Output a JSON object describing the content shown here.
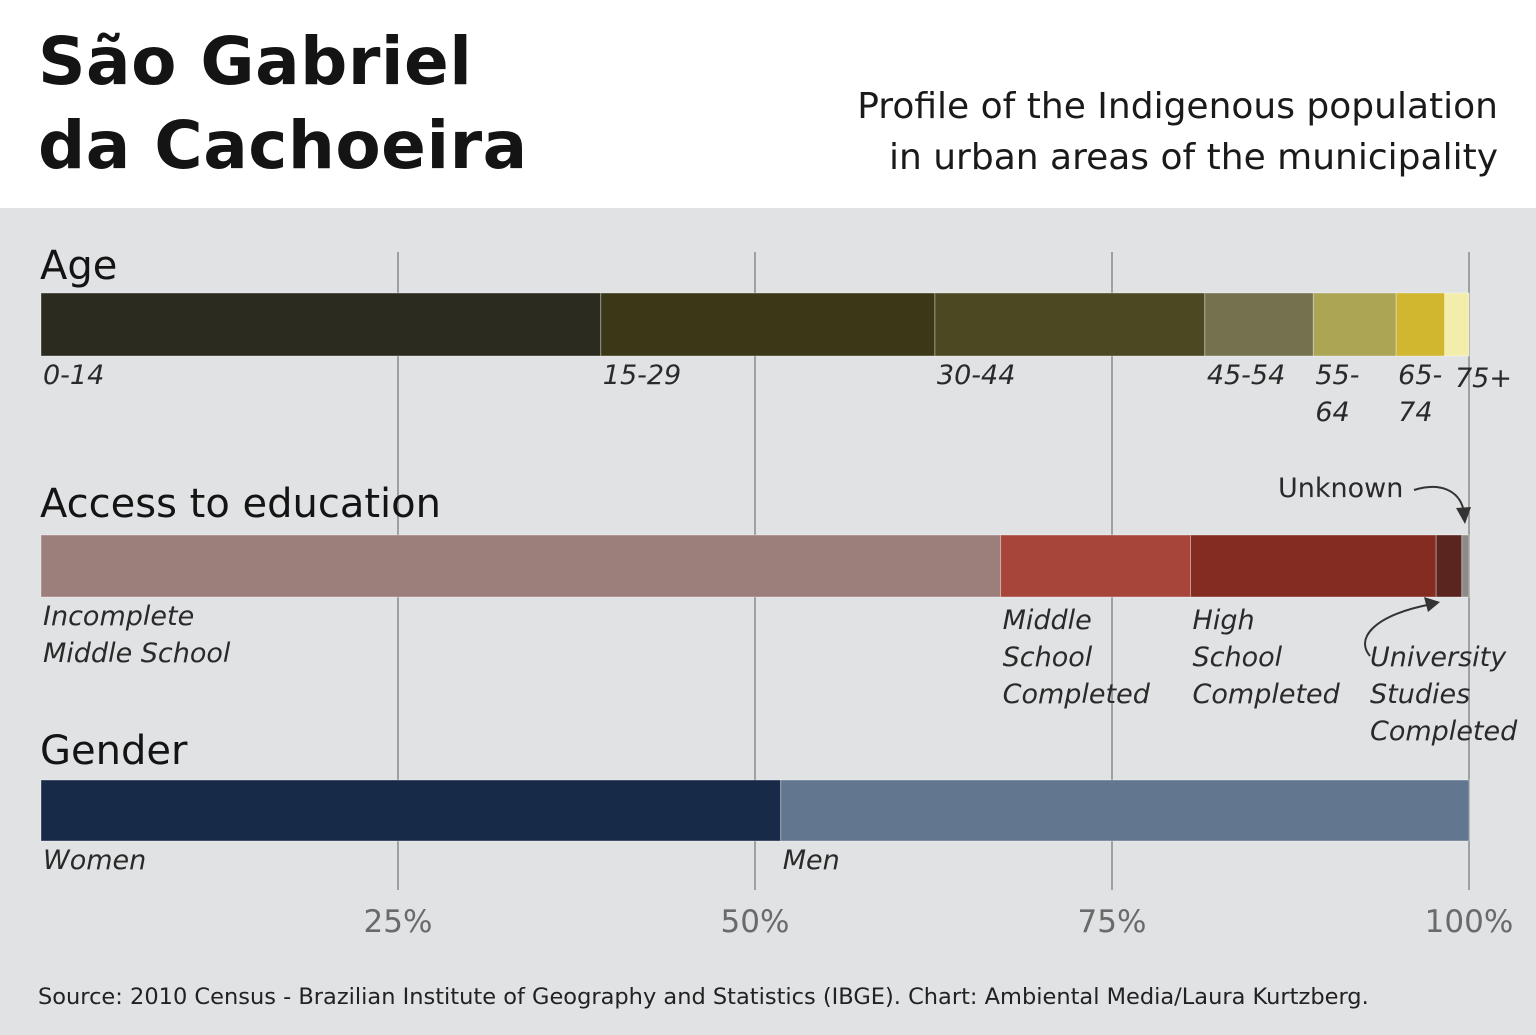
{
  "header": {
    "title_lines": [
      "São Gabriel",
      "da Cachoeira"
    ],
    "subtitle_lines": [
      "Profile of the Indigenous population",
      "in urban areas of the municipality"
    ]
  },
  "source_text": "Source: 2010 Census - Brazilian Institute of Geography and Statistics (IBGE). Chart: Ambiental Media/Laura Kurtzberg.",
  "chart_data": {
    "type": "bar",
    "orientation": "horizontal",
    "stacked": true,
    "xlim": [
      0,
      100
    ],
    "x_ticks": [
      25,
      50,
      75,
      100
    ],
    "x_tick_labels": [
      "25%",
      "50%",
      "75%",
      "100%"
    ],
    "grid": true,
    "bars": [
      {
        "title": "Age",
        "segments": [
          {
            "label": "0-14",
            "value": 39.2,
            "color": "#2c2b20"
          },
          {
            "label": "15-29",
            "value": 23.4,
            "color": "#3b3818"
          },
          {
            "label": "30-44",
            "value": 18.9,
            "color": "#4b4822"
          },
          {
            "label": "45-54",
            "value": 7.6,
            "color": "#74714f"
          },
          {
            "label": "55-64",
            "value": 5.8,
            "color": "#aba554"
          },
          {
            "label": "65-74",
            "value": 3.4,
            "color": "#d1b630"
          },
          {
            "label": "75+",
            "value": 1.7,
            "color": "#f3edab"
          }
        ]
      },
      {
        "title": "Access to education",
        "segments": [
          {
            "label": "Incomplete Middle School",
            "value": 67.2,
            "color": "#9c7e7a"
          },
          {
            "label": "Middle School Completed",
            "value": 13.3,
            "color": "#a7453b"
          },
          {
            "label": "High School Completed",
            "value": 17.2,
            "color": "#842c22"
          },
          {
            "label": "University Studies Completed",
            "value": 1.8,
            "color": "#5a241f"
          },
          {
            "label": "Unknown",
            "value": 0.5,
            "color": "#8e8a88"
          }
        ]
      },
      {
        "title": "Gender",
        "segments": [
          {
            "label": "Women",
            "value": 51.8,
            "color": "#172a47"
          },
          {
            "label": "Men",
            "value": 48.2,
            "color": "#62768f"
          }
        ]
      }
    ]
  }
}
